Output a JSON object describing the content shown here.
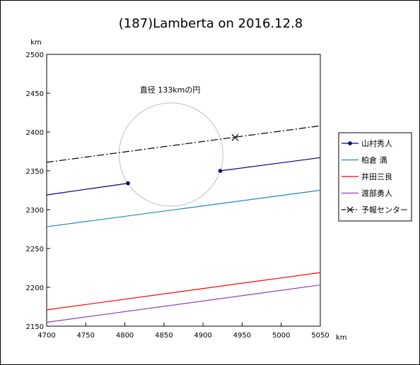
{
  "chart_data": {
    "type": "line",
    "title": "(187)Lamberta on 2016.12.8",
    "xlabel": "km",
    "ylabel": "km",
    "xlim": [
      4700,
      5050
    ],
    "ylim": [
      2150,
      2500
    ],
    "x_ticks": [
      "4700",
      "4750",
      "4800",
      "4850",
      "4900",
      "4950",
      "5000",
      "5050"
    ],
    "y_ticks": [
      "2150",
      "2200",
      "2250",
      "2300",
      "2350",
      "2400",
      "2450",
      "2500"
    ],
    "grid": false,
    "legend_position": "right",
    "annotation": "直径 133kmの円",
    "circle": {
      "center": [
        4859,
        2371
      ],
      "radius": 66.5,
      "color": "#c0c0c0"
    },
    "series": [
      {
        "name": "山村秀人",
        "color": "#000080",
        "style": "solid",
        "marker": "dot",
        "segments": [
          [
            [
              4700,
              2319
            ],
            [
              4804,
              2334
            ]
          ],
          [
            [
              4922,
              2350
            ],
            [
              5050,
              2367
            ]
          ]
        ],
        "points": [
          [
            4804,
            2334
          ],
          [
            4922,
            2350
          ]
        ]
      },
      {
        "name": "柏倉 満",
        "color": "#1f86c1",
        "style": "solid",
        "segments": [
          [
            [
              4700,
              2278
            ],
            [
              5050,
              2325
            ]
          ]
        ]
      },
      {
        "name": "井田三良",
        "color": "#ff0000",
        "style": "solid",
        "segments": [
          [
            [
              4700,
              2171
            ],
            [
              5050,
              2219
            ]
          ]
        ]
      },
      {
        "name": "渡部勇人",
        "color": "#8b3fbf",
        "style": "solid",
        "segments": [
          [
            [
              4700,
              2155
            ],
            [
              5050,
              2203
            ]
          ]
        ]
      },
      {
        "name": "予報センター",
        "color": "#000000",
        "style": "dashdot",
        "marker": "x",
        "segments": [
          [
            [
              4700,
              2361
            ],
            [
              5050,
              2408
            ]
          ]
        ],
        "points": [
          [
            4941,
            2393
          ]
        ]
      }
    ]
  }
}
